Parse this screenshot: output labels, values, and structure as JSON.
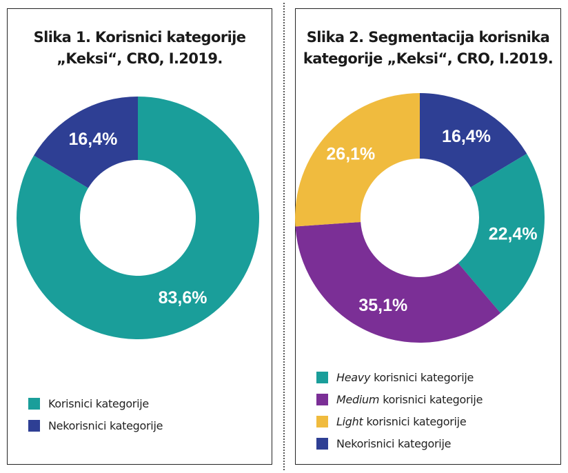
{
  "chart_data": [
    {
      "type": "pie",
      "title": [
        "Slika 1. Korisnici kategorije",
        "„Keksi“, CRO, I.2019."
      ],
      "slices": [
        {
          "label": "Korisnici kategorije",
          "value": 83.6,
          "display": "83,6%",
          "color": "#1a9e9a"
        },
        {
          "label": "Nekorisnici kategorije",
          "value": 16.4,
          "display": "16,4%",
          "color": "#2e3f94"
        }
      ],
      "legend": {
        "placement": "bottom-left",
        "items": [
          {
            "text": "Korisnici kategorije",
            "color": "#1a9e9a"
          },
          {
            "text": "Nekorisnici kategorije",
            "color": "#2e3f94"
          }
        ]
      }
    },
    {
      "type": "pie",
      "title": [
        "Slika 2. Segmentacija korisnika",
        "kategorije „Keksi“, CRO, I.2019."
      ],
      "slices": [
        {
          "label": "Nekorisnici kategorije",
          "value": 16.4,
          "display": "16,4%",
          "color": "#2e3f94"
        },
        {
          "label": "Heavy korisnici kategorije",
          "value": 22.4,
          "display": "22,4%",
          "color": "#1a9e9a"
        },
        {
          "label": "Medium korisnici kategorije",
          "value": 35.1,
          "display": "35,1%",
          "color": "#7b2f96"
        },
        {
          "label": "Light korisnici kategorije",
          "value": 26.1,
          "display": "26,1%",
          "color": "#f0bb3e"
        }
      ],
      "legend": {
        "placement": "bottom-left",
        "items": [
          {
            "em": "Heavy",
            "text": "korisnici kategorije",
            "color": "#1a9e9a"
          },
          {
            "em": "Medium",
            "text": "korisnici kategorije",
            "color": "#7b2f96"
          },
          {
            "em": "Light",
            "text": "korisnici kategorije",
            "color": "#f0bb3e"
          },
          {
            "em": "",
            "text": "Nekorisnici kategorije",
            "color": "#2e3f94"
          }
        ]
      }
    }
  ]
}
